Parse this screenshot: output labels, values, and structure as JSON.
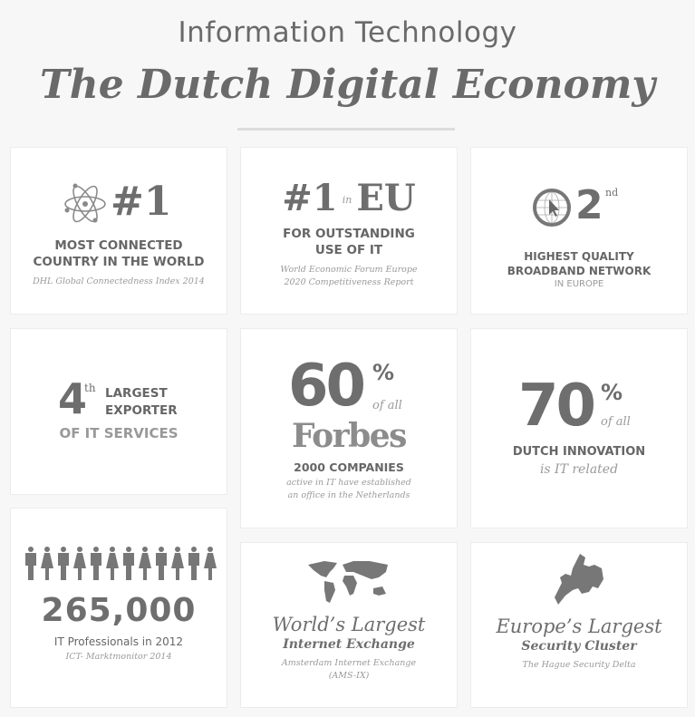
{
  "header": {
    "kicker": "Information Technology",
    "title": "The Dutch Digital Economy"
  },
  "cards": {
    "connected": {
      "icon": "atom-icon",
      "rank": "#1",
      "line1": "MOST CONNECTED",
      "line2": "COUNTRY IN THE WORLD",
      "source": "DHL Global Connectedness Index 2014"
    },
    "eu": {
      "rank": "#1",
      "in": "in",
      "region": "EU",
      "line1": "FOR OUTSTANDING",
      "line2": "USE OF IT",
      "source1": "World Economic Forum Europe",
      "source2": "2020 Competitiveness Report"
    },
    "broadband": {
      "icon": "globe-cursor-icon",
      "rank": "2",
      "suffix": "nd",
      "line1": "HIGHEST QUALITY",
      "line2": "BROADBAND NETWORK",
      "line3": "IN EUROPE"
    },
    "exporter": {
      "rank": "4",
      "suffix": "th",
      "line1": "LARGEST",
      "line2": "EXPORTER",
      "line3": "OF IT SERVICES"
    },
    "forbes": {
      "value": "60",
      "pct": "%",
      "ofall": "of all",
      "brand": "Forbes",
      "line1": "2000 COMPANIES",
      "desc1": "active in IT have established",
      "desc2": "an office in the Netherlands"
    },
    "innovation": {
      "value": "70",
      "pct": "%",
      "ofall": "of all",
      "line1": "DUTCH INNOVATION",
      "line2": "is IT related"
    },
    "professionals": {
      "icon": "people-icon",
      "value": "265,000",
      "line1": "IT Professionals in 2012",
      "source": "ICT- Marktmonitor 2014"
    },
    "exchange": {
      "icon": "world-map-icon",
      "title": "World’s Largest",
      "subtitle": "Internet Exchange",
      "source1": "Amsterdam Internet Exchange",
      "source2": "(AMS-IX)"
    },
    "security": {
      "icon": "europe-map-icon",
      "title": "Europe’s Largest",
      "subtitle": "Security Cluster",
      "source": "The Hague Security Delta"
    }
  }
}
